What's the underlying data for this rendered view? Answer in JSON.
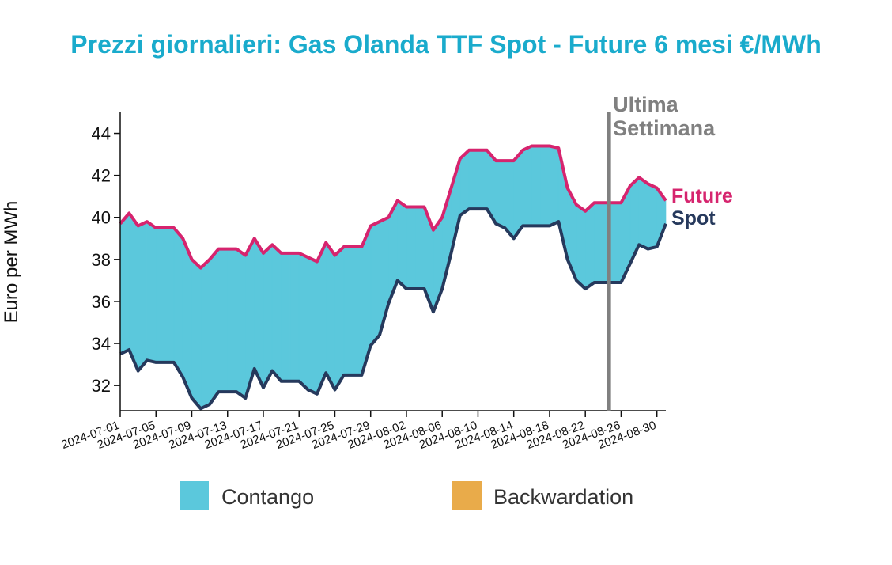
{
  "chart_data": {
    "type": "area",
    "title": "Prezzi giornalieri: Gas Olanda TTF Spot - Future 6 mesi €/MWh",
    "ylabel": "Euro per MWh",
    "xlabel": "",
    "ylim": [
      30.8,
      45
    ],
    "yticks": [
      32,
      34,
      36,
      38,
      40,
      42,
      44
    ],
    "xlim": [
      "2024-07-01",
      "2024-08-31"
    ],
    "xticks": [
      "2024-07-01",
      "2024-07-05",
      "2024-07-09",
      "2024-07-13",
      "2024-07-17",
      "2024-07-21",
      "2024-07-25",
      "2024-07-29",
      "2024-08-02",
      "2024-08-06",
      "2024-08-10",
      "2024-08-14",
      "2024-08-18",
      "2024-08-22",
      "2024-08-26",
      "2024-08-30"
    ],
    "marker": {
      "date": "2024-08-25",
      "label_line1": "Ultima",
      "label_line2": "Settimana",
      "color": "#808080"
    },
    "series": [
      {
        "name": "Future",
        "color": "#d6246e",
        "points": [
          [
            "2024-07-01",
            39.7
          ],
          [
            "2024-07-02",
            40.2
          ],
          [
            "2024-07-03",
            39.6
          ],
          [
            "2024-07-04",
            39.8
          ],
          [
            "2024-07-05",
            39.5
          ],
          [
            "2024-07-06",
            39.5
          ],
          [
            "2024-07-07",
            39.5
          ],
          [
            "2024-07-08",
            39.0
          ],
          [
            "2024-07-09",
            38.0
          ],
          [
            "2024-07-10",
            37.6
          ],
          [
            "2024-07-11",
            38.0
          ],
          [
            "2024-07-12",
            38.5
          ],
          [
            "2024-07-13",
            38.5
          ],
          [
            "2024-07-14",
            38.5
          ],
          [
            "2024-07-15",
            38.2
          ],
          [
            "2024-07-16",
            39.0
          ],
          [
            "2024-07-17",
            38.3
          ],
          [
            "2024-07-18",
            38.7
          ],
          [
            "2024-07-19",
            38.3
          ],
          [
            "2024-07-20",
            38.3
          ],
          [
            "2024-07-21",
            38.3
          ],
          [
            "2024-07-22",
            38.1
          ],
          [
            "2024-07-23",
            37.9
          ],
          [
            "2024-07-24",
            38.8
          ],
          [
            "2024-07-25",
            38.2
          ],
          [
            "2024-07-26",
            38.6
          ],
          [
            "2024-07-27",
            38.6
          ],
          [
            "2024-07-28",
            38.6
          ],
          [
            "2024-07-29",
            39.6
          ],
          [
            "2024-07-30",
            39.8
          ],
          [
            "2024-07-31",
            40.0
          ],
          [
            "2024-08-01",
            40.8
          ],
          [
            "2024-08-02",
            40.5
          ],
          [
            "2024-08-03",
            40.5
          ],
          [
            "2024-08-04",
            40.5
          ],
          [
            "2024-08-05",
            39.4
          ],
          [
            "2024-08-06",
            40.0
          ],
          [
            "2024-08-07",
            41.4
          ],
          [
            "2024-08-08",
            42.8
          ],
          [
            "2024-08-09",
            43.2
          ],
          [
            "2024-08-10",
            43.2
          ],
          [
            "2024-08-11",
            43.2
          ],
          [
            "2024-08-12",
            42.7
          ],
          [
            "2024-08-13",
            42.7
          ],
          [
            "2024-08-14",
            42.7
          ],
          [
            "2024-08-15",
            43.2
          ],
          [
            "2024-08-16",
            43.4
          ],
          [
            "2024-08-17",
            43.4
          ],
          [
            "2024-08-18",
            43.4
          ],
          [
            "2024-08-19",
            43.3
          ],
          [
            "2024-08-20",
            41.4
          ],
          [
            "2024-08-21",
            40.6
          ],
          [
            "2024-08-22",
            40.3
          ],
          [
            "2024-08-23",
            40.7
          ],
          [
            "2024-08-24",
            40.7
          ],
          [
            "2024-08-25",
            40.7
          ],
          [
            "2024-08-26",
            40.7
          ],
          [
            "2024-08-27",
            41.5
          ],
          [
            "2024-08-28",
            41.9
          ],
          [
            "2024-08-29",
            41.6
          ],
          [
            "2024-08-30",
            41.4
          ],
          [
            "2024-08-31",
            40.8
          ]
        ]
      },
      {
        "name": "Spot",
        "color": "#26395c",
        "points": [
          [
            "2024-07-01",
            33.5
          ],
          [
            "2024-07-02",
            33.7
          ],
          [
            "2024-07-03",
            32.7
          ],
          [
            "2024-07-04",
            33.2
          ],
          [
            "2024-07-05",
            33.1
          ],
          [
            "2024-07-06",
            33.1
          ],
          [
            "2024-07-07",
            33.1
          ],
          [
            "2024-07-08",
            32.4
          ],
          [
            "2024-07-09",
            31.4
          ],
          [
            "2024-07-10",
            30.9
          ],
          [
            "2024-07-11",
            31.1
          ],
          [
            "2024-07-12",
            31.7
          ],
          [
            "2024-07-13",
            31.7
          ],
          [
            "2024-07-14",
            31.7
          ],
          [
            "2024-07-15",
            31.4
          ],
          [
            "2024-07-16",
            32.8
          ],
          [
            "2024-07-17",
            31.9
          ],
          [
            "2024-07-18",
            32.7
          ],
          [
            "2024-07-19",
            32.2
          ],
          [
            "2024-07-20",
            32.2
          ],
          [
            "2024-07-21",
            32.2
          ],
          [
            "2024-07-22",
            31.8
          ],
          [
            "2024-07-23",
            31.6
          ],
          [
            "2024-07-24",
            32.6
          ],
          [
            "2024-07-25",
            31.8
          ],
          [
            "2024-07-26",
            32.5
          ],
          [
            "2024-07-27",
            32.5
          ],
          [
            "2024-07-28",
            32.5
          ],
          [
            "2024-07-29",
            33.9
          ],
          [
            "2024-07-30",
            34.4
          ],
          [
            "2024-07-31",
            35.9
          ],
          [
            "2024-08-01",
            37.0
          ],
          [
            "2024-08-02",
            36.6
          ],
          [
            "2024-08-03",
            36.6
          ],
          [
            "2024-08-04",
            36.6
          ],
          [
            "2024-08-05",
            35.5
          ],
          [
            "2024-08-06",
            36.6
          ],
          [
            "2024-08-07",
            38.3
          ],
          [
            "2024-08-08",
            40.1
          ],
          [
            "2024-08-09",
            40.4
          ],
          [
            "2024-08-10",
            40.4
          ],
          [
            "2024-08-11",
            40.4
          ],
          [
            "2024-08-12",
            39.7
          ],
          [
            "2024-08-13",
            39.5
          ],
          [
            "2024-08-14",
            39.0
          ],
          [
            "2024-08-15",
            39.6
          ],
          [
            "2024-08-16",
            39.6
          ],
          [
            "2024-08-17",
            39.6
          ],
          [
            "2024-08-18",
            39.6
          ],
          [
            "2024-08-19",
            39.8
          ],
          [
            "2024-08-20",
            38.0
          ],
          [
            "2024-08-21",
            37.0
          ],
          [
            "2024-08-22",
            36.6
          ],
          [
            "2024-08-23",
            36.9
          ],
          [
            "2024-08-24",
            36.9
          ],
          [
            "2024-08-25",
            36.9
          ],
          [
            "2024-08-26",
            36.9
          ],
          [
            "2024-08-27",
            37.8
          ],
          [
            "2024-08-28",
            38.7
          ],
          [
            "2024-08-29",
            38.5
          ],
          [
            "2024-08-30",
            38.6
          ],
          [
            "2024-08-31",
            39.7
          ]
        ]
      }
    ],
    "legend": {
      "placement": "bottom",
      "items": [
        {
          "label": "Contango",
          "color": "#5bc8dc"
        },
        {
          "label": "Backwardation",
          "color": "#e9ab4a"
        }
      ]
    }
  }
}
